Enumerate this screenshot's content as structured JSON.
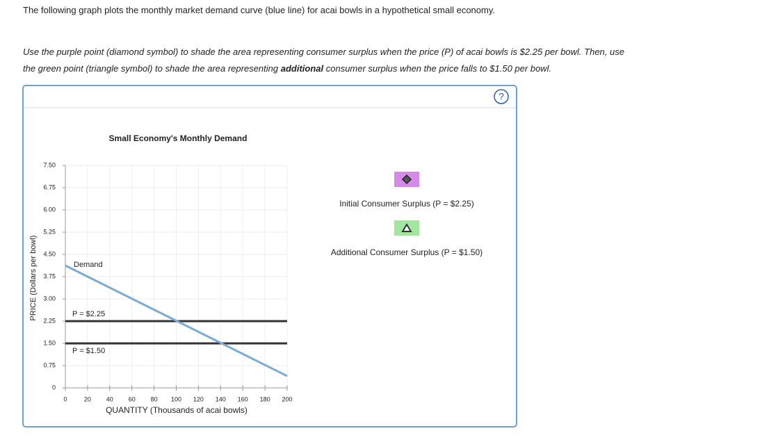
{
  "header": {
    "text": "The following graph plots the monthly market demand curve (blue line) for acai bowls in a hypothetical small economy."
  },
  "instructions": {
    "parts": [
      "Use the purple point (diamond symbol) to shade the area representing consumer surplus when the price (P) of acai bowls is $2.25 per bowl. Then, use",
      "the green point (triangle symbol) to shade the area representing ",
      "additional",
      " consumer surplus when the price falls to $1.50 per bowl."
    ]
  },
  "help": "?",
  "chart_data": {
    "type": "line",
    "title": "Small Economy's Monthly Demand",
    "xlabel": "QUANTITY (Thousands of acai bowls)",
    "ylabel": "PRICE (Dollars per bowl)",
    "xlim": [
      0,
      200
    ],
    "xticks": [
      0,
      20,
      40,
      60,
      80,
      100,
      120,
      140,
      160,
      180,
      200
    ],
    "ylim": [
      0,
      7.5
    ],
    "yticks": [
      0,
      0.75,
      {
        "value": 1.5,
        "label": "1.50"
      },
      2.25,
      {
        "value": 3,
        "label": "3.00"
      },
      3.75,
      {
        "value": 4.5,
        "label": "4.50"
      },
      5.25,
      {
        "value": 6,
        "label": "6.00"
      },
      6.75,
      {
        "value": 7.5,
        "label": "7.50"
      }
    ],
    "grid": true,
    "series": [
      {
        "name": "Demand",
        "color": "#7aaad6",
        "x": [
          0,
          200
        ],
        "values": [
          4.125,
          0.4
        ]
      }
    ],
    "price_lines": [
      {
        "label": "P = $2.25",
        "value": 2.25,
        "color": "#333333"
      },
      {
        "label": "P = $1.50",
        "value": 1.5,
        "color": "#333333"
      }
    ]
  },
  "tools": [
    {
      "label": "Initial Consumer Surplus (P = $2.25)",
      "symbol": "diamond",
      "color": "#d48ae6"
    },
    {
      "label": "Additional Consumer Surplus (P = $1.50)",
      "symbol": "triangle",
      "color": "#a2e6a0"
    }
  ]
}
